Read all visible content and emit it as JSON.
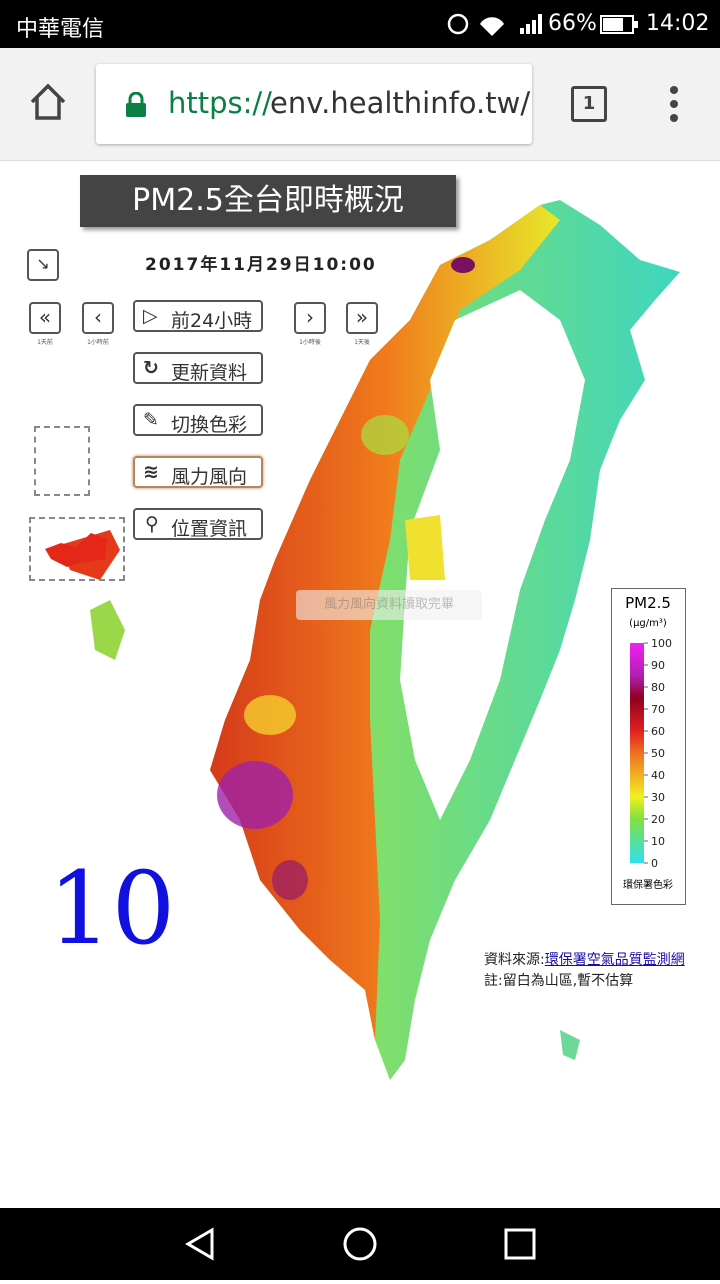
{
  "status_bar": {
    "carrier": "中華電信",
    "battery": "66%",
    "time": "14:02"
  },
  "browser": {
    "url_scheme": "https://",
    "url_host": "env.healthinfo.tw/",
    "tab_count": "1"
  },
  "page": {
    "title": "PM2.5全台即時概況",
    "datetime": "2017年11月29日10:00",
    "nav_labels": [
      "1天前",
      "1小時前",
      "1小時後",
      "1天後"
    ],
    "buttons": [
      "前24小時",
      "更新資料",
      "切換色彩",
      "風力風向",
      "位置資訊"
    ],
    "toast": "風力風向資料讀取完畢",
    "hour": "10",
    "legend": {
      "title": "PM2.5",
      "unit": "(μg/m³)",
      "ticks": [
        100,
        90,
        80,
        70,
        60,
        50,
        40,
        30,
        20,
        10,
        0
      ],
      "footer": "環保署色彩"
    },
    "source_label": "資料來源:",
    "source_link": "環保署空氣品質監測網",
    "note": "註:留白為山區,暫不估算"
  }
}
